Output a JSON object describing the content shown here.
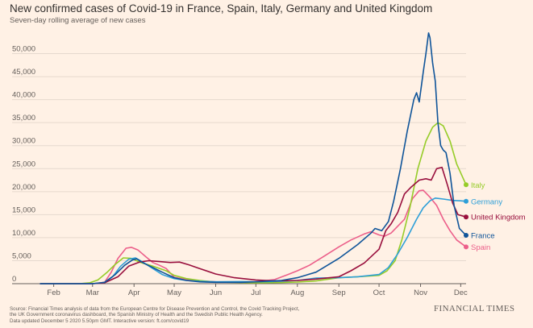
{
  "chart_data": {
    "type": "line",
    "title": "New confirmed cases of Covid-19 in France, Spain, Italy, Germany and United Kingdom",
    "subtitle": "Seven-day rolling average of new cases",
    "ylim": [
      0,
      55000
    ],
    "yticks": [
      0,
      5000,
      10000,
      15000,
      20000,
      25000,
      30000,
      35000,
      40000,
      45000,
      50000
    ],
    "ytick_labels": [
      "0",
      "5,000",
      "10,000",
      "15,000",
      "20,000",
      "25,000",
      "30,000",
      "35,000",
      "40,000",
      "45,000",
      "50,000"
    ],
    "x_range": [
      "2020-01-22",
      "2020-12-05"
    ],
    "xticks": [
      {
        "date": "2020-02-01",
        "label": "Feb"
      },
      {
        "date": "2020-03-01",
        "label": "Mar"
      },
      {
        "date": "2020-04-01",
        "label": "Apr"
      },
      {
        "date": "2020-05-01",
        "label": "May"
      },
      {
        "date": "2020-06-01",
        "label": "Jun"
      },
      {
        "date": "2020-07-01",
        "label": "Jul"
      },
      {
        "date": "2020-08-01",
        "label": "Aug"
      },
      {
        "date": "2020-09-01",
        "label": "Sep"
      },
      {
        "date": "2020-10-01",
        "label": "Oct"
      },
      {
        "date": "2020-11-01",
        "label": "Nov"
      },
      {
        "date": "2020-12-01",
        "label": "Dec"
      }
    ],
    "series": [
      {
        "name": "Spain",
        "color": "#ec5f8a",
        "points": [
          [
            "2020-01-22",
            0
          ],
          [
            "2020-03-01",
            0
          ],
          [
            "2020-03-10",
            300
          ],
          [
            "2020-03-15",
            2500
          ],
          [
            "2020-03-20",
            5500
          ],
          [
            "2020-03-26",
            7700
          ],
          [
            "2020-03-30",
            7900
          ],
          [
            "2020-04-04",
            7300
          ],
          [
            "2020-04-10",
            5800
          ],
          [
            "2020-04-15",
            4600
          ],
          [
            "2020-04-20",
            4000
          ],
          [
            "2020-04-25",
            3300
          ],
          [
            "2020-05-01",
            1400
          ],
          [
            "2020-05-10",
            900
          ],
          [
            "2020-05-20",
            600
          ],
          [
            "2020-06-01",
            400
          ],
          [
            "2020-06-20",
            300
          ],
          [
            "2020-07-01",
            400
          ],
          [
            "2020-07-15",
            900
          ],
          [
            "2020-07-25",
            2000
          ],
          [
            "2020-08-01",
            2800
          ],
          [
            "2020-08-10",
            4000
          ],
          [
            "2020-08-20",
            5800
          ],
          [
            "2020-09-01",
            8000
          ],
          [
            "2020-09-10",
            9500
          ],
          [
            "2020-09-20",
            10800
          ],
          [
            "2020-09-25",
            11300
          ],
          [
            "2020-10-01",
            10600
          ],
          [
            "2020-10-05",
            10300
          ],
          [
            "2020-10-10",
            11000
          ],
          [
            "2020-10-20",
            14000
          ],
          [
            "2020-10-26",
            18500
          ],
          [
            "2020-10-31",
            20200
          ],
          [
            "2020-11-03",
            20300
          ],
          [
            "2020-11-08",
            18800
          ],
          [
            "2020-11-13",
            17000
          ],
          [
            "2020-11-18",
            14000
          ],
          [
            "2020-11-23",
            11500
          ],
          [
            "2020-11-28",
            9500
          ],
          [
            "2020-12-05",
            8000
          ]
        ]
      },
      {
        "name": "Italy",
        "color": "#96cc28",
        "points": [
          [
            "2020-01-22",
            0
          ],
          [
            "2020-02-20",
            0
          ],
          [
            "2020-02-28",
            200
          ],
          [
            "2020-03-05",
            800
          ],
          [
            "2020-03-12",
            2500
          ],
          [
            "2020-03-18",
            4200
          ],
          [
            "2020-03-24",
            5600
          ],
          [
            "2020-03-30",
            5500
          ],
          [
            "2020-04-05",
            4700
          ],
          [
            "2020-04-15",
            3800
          ],
          [
            "2020-04-25",
            2800
          ],
          [
            "2020-05-01",
            1800
          ],
          [
            "2020-05-10",
            1100
          ],
          [
            "2020-05-20",
            700
          ],
          [
            "2020-06-01",
            350
          ],
          [
            "2020-06-20",
            250
          ],
          [
            "2020-07-01",
            200
          ],
          [
            "2020-07-20",
            250
          ],
          [
            "2020-08-01",
            350
          ],
          [
            "2020-08-15",
            600
          ],
          [
            "2020-09-01",
            1300
          ],
          [
            "2020-09-15",
            1500
          ],
          [
            "2020-10-01",
            1800
          ],
          [
            "2020-10-07",
            2800
          ],
          [
            "2020-10-13",
            5000
          ],
          [
            "2020-10-18",
            9500
          ],
          [
            "2020-10-24",
            16500
          ],
          [
            "2020-10-30",
            25000
          ],
          [
            "2020-11-05",
            31000
          ],
          [
            "2020-11-10",
            34000
          ],
          [
            "2020-11-14",
            35000
          ],
          [
            "2020-11-18",
            34300
          ],
          [
            "2020-11-23",
            31000
          ],
          [
            "2020-11-28",
            26000
          ],
          [
            "2020-12-05",
            21500
          ]
        ]
      },
      {
        "name": "Germany",
        "color": "#2e9fd8",
        "points": [
          [
            "2020-01-22",
            0
          ],
          [
            "2020-03-01",
            0
          ],
          [
            "2020-03-10",
            200
          ],
          [
            "2020-03-16",
            1500
          ],
          [
            "2020-03-22",
            3800
          ],
          [
            "2020-03-28",
            5300
          ],
          [
            "2020-04-02",
            5600
          ],
          [
            "2020-04-08",
            4600
          ],
          [
            "2020-04-15",
            3300
          ],
          [
            "2020-04-22",
            2000
          ],
          [
            "2020-05-01",
            1100
          ],
          [
            "2020-05-10",
            700
          ],
          [
            "2020-05-20",
            500
          ],
          [
            "2020-06-01",
            400
          ],
          [
            "2020-06-20",
            450
          ],
          [
            "2020-07-01",
            400
          ],
          [
            "2020-07-20",
            500
          ],
          [
            "2020-08-01",
            700
          ],
          [
            "2020-08-15",
            1200
          ],
          [
            "2020-09-01",
            1300
          ],
          [
            "2020-09-15",
            1500
          ],
          [
            "2020-10-01",
            2000
          ],
          [
            "2020-10-08",
            3500
          ],
          [
            "2020-10-15",
            6500
          ],
          [
            "2020-10-22",
            10000
          ],
          [
            "2020-10-29",
            14000
          ],
          [
            "2020-11-03",
            16500
          ],
          [
            "2020-11-08",
            18000
          ],
          [
            "2020-11-12",
            18600
          ],
          [
            "2020-11-18",
            18400
          ],
          [
            "2020-11-25",
            18100
          ],
          [
            "2020-12-01",
            18000
          ],
          [
            "2020-12-05",
            17900
          ]
        ]
      },
      {
        "name": "United Kingdom",
        "color": "#990f3d",
        "points": [
          [
            "2020-01-22",
            0
          ],
          [
            "2020-03-01",
            0
          ],
          [
            "2020-03-10",
            200
          ],
          [
            "2020-03-20",
            1500
          ],
          [
            "2020-03-28",
            3800
          ],
          [
            "2020-04-05",
            4700
          ],
          [
            "2020-04-12",
            5000
          ],
          [
            "2020-04-20",
            4800
          ],
          [
            "2020-04-28",
            4600
          ],
          [
            "2020-05-05",
            4700
          ],
          [
            "2020-05-12",
            4100
          ],
          [
            "2020-05-20",
            3300
          ],
          [
            "2020-06-01",
            2100
          ],
          [
            "2020-06-15",
            1300
          ],
          [
            "2020-07-01",
            800
          ],
          [
            "2020-07-15",
            600
          ],
          [
            "2020-08-01",
            700
          ],
          [
            "2020-08-15",
            1000
          ],
          [
            "2020-09-01",
            1500
          ],
          [
            "2020-09-10",
            2800
          ],
          [
            "2020-09-20",
            4500
          ],
          [
            "2020-10-01",
            7500
          ],
          [
            "2020-10-06",
            11500
          ],
          [
            "2020-10-10",
            13000
          ],
          [
            "2020-10-15",
            15500
          ],
          [
            "2020-10-20",
            19500
          ],
          [
            "2020-10-25",
            21000
          ],
          [
            "2020-10-31",
            22500
          ],
          [
            "2020-11-05",
            22800
          ],
          [
            "2020-11-09",
            22500
          ],
          [
            "2020-11-13",
            25000
          ],
          [
            "2020-11-17",
            25300
          ],
          [
            "2020-11-21",
            21500
          ],
          [
            "2020-11-25",
            17500
          ],
          [
            "2020-11-29",
            15000
          ],
          [
            "2020-12-05",
            14500
          ]
        ]
      },
      {
        "name": "France",
        "color": "#0f5499",
        "points": [
          [
            "2020-01-22",
            0
          ],
          [
            "2020-03-01",
            0
          ],
          [
            "2020-03-10",
            300
          ],
          [
            "2020-03-18",
            2000
          ],
          [
            "2020-03-25",
            4000
          ],
          [
            "2020-03-31",
            5200
          ],
          [
            "2020-04-03",
            5400
          ],
          [
            "2020-04-08",
            4500
          ],
          [
            "2020-04-15",
            3500
          ],
          [
            "2020-04-22",
            2500
          ],
          [
            "2020-05-01",
            1300
          ],
          [
            "2020-05-10",
            700
          ],
          [
            "2020-05-20",
            400
          ],
          [
            "2020-06-01",
            300
          ],
          [
            "2020-06-20",
            300
          ],
          [
            "2020-07-01",
            400
          ],
          [
            "2020-07-20",
            700
          ],
          [
            "2020-08-01",
            1300
          ],
          [
            "2020-08-15",
            2500
          ],
          [
            "2020-09-01",
            5500
          ],
          [
            "2020-09-15",
            8500
          ],
          [
            "2020-09-25",
            11000
          ],
          [
            "2020-09-28",
            12000
          ],
          [
            "2020-10-03",
            11500
          ],
          [
            "2020-10-08",
            13500
          ],
          [
            "2020-10-12",
            18000
          ],
          [
            "2020-10-17",
            25000
          ],
          [
            "2020-10-22",
            33000
          ],
          [
            "2020-10-27",
            40000
          ],
          [
            "2020-10-29",
            41500
          ],
          [
            "2020-10-31",
            39500
          ],
          [
            "2020-11-03",
            46000
          ],
          [
            "2020-11-05",
            50000
          ],
          [
            "2020-11-07",
            54500
          ],
          [
            "2020-11-08",
            53500
          ],
          [
            "2020-11-10",
            48000
          ],
          [
            "2020-11-12",
            44000
          ],
          [
            "2020-11-14",
            35000
          ],
          [
            "2020-11-16",
            30000
          ],
          [
            "2020-11-18",
            29000
          ],
          [
            "2020-11-20",
            28500
          ],
          [
            "2020-11-23",
            24000
          ],
          [
            "2020-11-26",
            17000
          ],
          [
            "2020-11-30",
            12000
          ],
          [
            "2020-12-05",
            10500
          ]
        ]
      }
    ]
  },
  "source": {
    "lines": [
      "Source: Financial Times analysis of data from the European Centre for Disease Prevention and Control, the Covid Tracking Project,",
      "the UK Government coronavirus dashboard, the Spanish Ministry of Health and the Swedish Public Health Agency.",
      "Data updated December 5 2020 5.50pm GMT. Interactive version: ft.com/covid19"
    ]
  },
  "brand": "FINANCIAL TIMES"
}
